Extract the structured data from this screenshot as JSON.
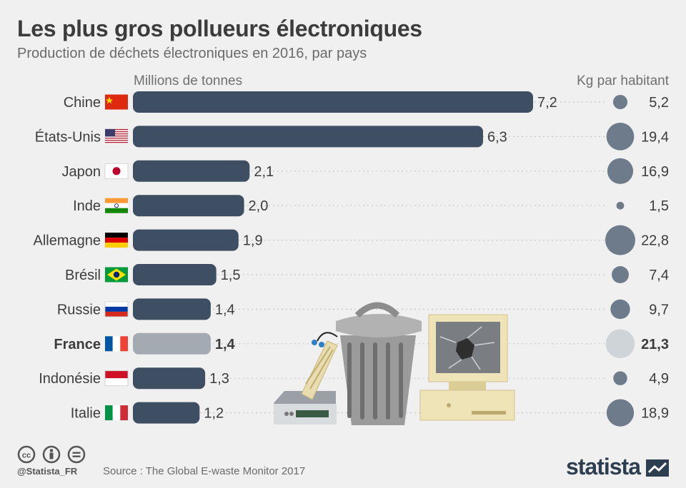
{
  "header": {
    "title": "Les plus gros pollueurs électroniques",
    "subtitle": "Production de déchets électroniques en 2016, par pays",
    "left_column_label": "Millions de tonnes",
    "right_column_label": "Kg par habitant"
  },
  "colors": {
    "bar": "#3e4f63",
    "bar_highlight": "#a3aab2",
    "bubble": "#6e7b8a",
    "bubble_highlight": "#cfd4d9",
    "text": "#3c3c3c"
  },
  "chart_data": {
    "type": "bar",
    "orientation": "horizontal",
    "categories": [
      "Chine",
      "États-Unis",
      "Japon",
      "Inde",
      "Allemagne",
      "Brésil",
      "Russie",
      "France",
      "Indonésie",
      "Italie"
    ],
    "flags": [
      "flag-china-icon",
      "flag-usa-icon",
      "flag-japan-icon",
      "flag-india-icon",
      "flag-germany-icon",
      "flag-brazil-icon",
      "flag-russia-icon",
      "flag-france-icon",
      "flag-indonesia-icon",
      "flag-italy-icon"
    ],
    "highlight": "France",
    "series": [
      {
        "name": "Millions de tonnes",
        "values": [
          7.2,
          6.3,
          2.1,
          2.0,
          1.9,
          1.5,
          1.4,
          1.4,
          1.3,
          1.2
        ],
        "labels": [
          "7,2",
          "6,3",
          "2,1",
          "2,0",
          "1,9",
          "1,5",
          "1,4",
          "1,4",
          "1,3",
          "1,2"
        ]
      },
      {
        "name": "Kg par habitant",
        "values": [
          5.2,
          19.4,
          16.9,
          1.5,
          22.8,
          7.4,
          9.7,
          21.3,
          4.9,
          18.9
        ],
        "labels": [
          "5,2",
          "19,4",
          "16,9",
          "1,5",
          "22,8",
          "7,4",
          "9,7",
          "21,3",
          "4,9",
          "18,9"
        ]
      }
    ]
  },
  "illustration": {
    "name": "e-waste-illustration-icon"
  },
  "footer": {
    "handle": "@Statista_FR",
    "source": "Source : The Global E-waste Monitor 2017",
    "brand": "statista"
  }
}
